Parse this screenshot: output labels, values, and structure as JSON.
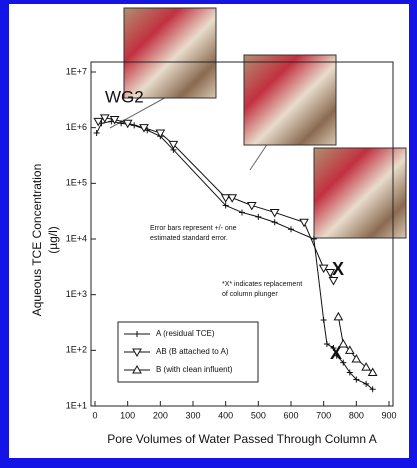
{
  "chart_data": {
    "type": "line",
    "log_y": true,
    "annotations": {
      "label": "WG2",
      "error_note_1": "Error bars represent +/- one",
      "error_note_2": "estimated standard error.",
      "x_note_1": "*X* indicates replacement",
      "x_note_2": "of column plunger",
      "x_mark_1": "X",
      "x_mark_2": "X"
    },
    "xlabel": "Pore Volumes of Water Passed Through Column A",
    "ylabel": "Aqueous TCE Concentration",
    "ylabel_unit": "(µg/l)",
    "xlim": [
      0,
      900
    ],
    "xticks": [
      0,
      100,
      200,
      300,
      400,
      500,
      600,
      700,
      800,
      900
    ],
    "ylim": [
      10,
      10000000
    ],
    "yticks": [
      {
        "value": 10,
        "label": "1E+1"
      },
      {
        "value": 100,
        "label": "1E+2"
      },
      {
        "value": 1000,
        "label": "1E+3"
      },
      {
        "value": 10000,
        "label": "1E+4"
      },
      {
        "value": 100000,
        "label": "1E+5"
      },
      {
        "value": 1000000,
        "label": "1E+6"
      },
      {
        "value": 10000000,
        "label": "1E+7"
      }
    ],
    "series": [
      {
        "name": "A (residual TCE)",
        "color": "#111111",
        "marker": "plus",
        "x": [
          5,
          20,
          50,
          80,
          120,
          160,
          200,
          240,
          400,
          450,
          500,
          550,
          600,
          670,
          700,
          710,
          730,
          740,
          760,
          780,
          800,
          830,
          850
        ],
        "values": [
          800000,
          1200000,
          1300000,
          1200000,
          1100000,
          900000,
          700000,
          400000,
          40000,
          30000,
          25000,
          20000,
          15000,
          10000,
          350,
          130,
          110,
          80,
          60,
          40,
          30,
          25,
          20
        ]
      },
      {
        "name": "AB (B attached to A)",
        "color": "#111111",
        "marker": "triangle-down",
        "x": [
          10,
          30,
          60,
          100,
          150,
          200,
          240,
          400,
          420,
          480,
          550,
          640,
          700,
          720,
          730
        ],
        "values": [
          1300000,
          1500000,
          1400000,
          1200000,
          1000000,
          800000,
          500000,
          55000,
          55000,
          40000,
          30000,
          20000,
          3000,
          2500,
          1800
        ]
      },
      {
        "name": "B (with clean influent)",
        "color": "#111111",
        "marker": "triangle-up",
        "x": [
          745,
          760,
          780,
          800,
          830,
          850
        ],
        "values": [
          400,
          130,
          100,
          70,
          50,
          40
        ]
      }
    ]
  }
}
